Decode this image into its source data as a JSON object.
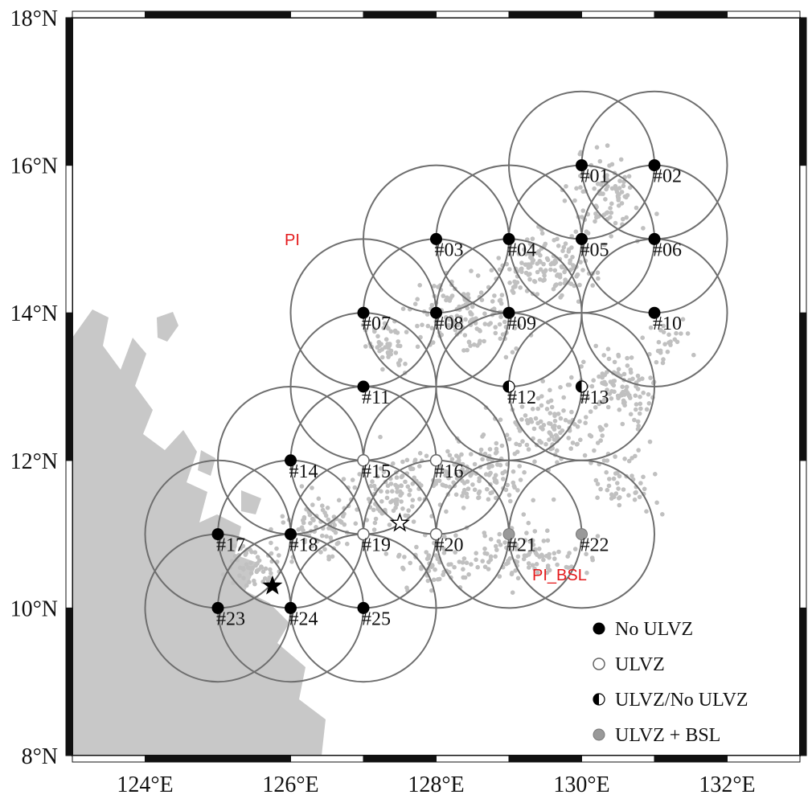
{
  "map": {
    "lon_range": [
      123,
      133
    ],
    "lat_range": [
      8,
      18
    ],
    "x_ticks": [
      {
        "value": 124,
        "label": "124°E"
      },
      {
        "value": 126,
        "label": "126°E"
      },
      {
        "value": 128,
        "label": "128°E"
      },
      {
        "value": 130,
        "label": "130°E"
      },
      {
        "value": 132,
        "label": "132°E"
      }
    ],
    "y_ticks": [
      {
        "value": 8,
        "label": "8°N"
      },
      {
        "value": 10,
        "label": "10°N"
      },
      {
        "value": 12,
        "label": "12°N"
      },
      {
        "value": 14,
        "label": "14°N"
      },
      {
        "value": 16,
        "label": "16°N"
      },
      {
        "value": 18,
        "label": "18°N"
      }
    ],
    "circle_radius_deg": 1,
    "colors": {
      "land": "#c8c8c8",
      "circle": "#6e6e6e",
      "points": "#c0c0c0",
      "ulvz_bsl": "#999999",
      "annotation": "#e41a1c",
      "frame": "#111111"
    }
  },
  "bins": [
    {
      "id": "#01",
      "lon": 130,
      "lat": 16,
      "type": "no_ulvz"
    },
    {
      "id": "#02",
      "lon": 131,
      "lat": 16,
      "type": "no_ulvz"
    },
    {
      "id": "#03",
      "lon": 128,
      "lat": 15,
      "type": "no_ulvz"
    },
    {
      "id": "#04",
      "lon": 129,
      "lat": 15,
      "type": "no_ulvz"
    },
    {
      "id": "#05",
      "lon": 130,
      "lat": 15,
      "type": "no_ulvz"
    },
    {
      "id": "#06",
      "lon": 131,
      "lat": 15,
      "type": "no_ulvz"
    },
    {
      "id": "#07",
      "lon": 127,
      "lat": 14,
      "type": "no_ulvz"
    },
    {
      "id": "#08",
      "lon": 128,
      "lat": 14,
      "type": "no_ulvz"
    },
    {
      "id": "#09",
      "lon": 129,
      "lat": 14,
      "type": "no_ulvz"
    },
    {
      "id": "#10",
      "lon": 131,
      "lat": 14,
      "type": "no_ulvz"
    },
    {
      "id": "#11",
      "lon": 127,
      "lat": 13,
      "type": "no_ulvz"
    },
    {
      "id": "#12",
      "lon": 129,
      "lat": 13,
      "type": "half"
    },
    {
      "id": "#13",
      "lon": 130,
      "lat": 13,
      "type": "half"
    },
    {
      "id": "#14",
      "lon": 126,
      "lat": 12,
      "type": "no_ulvz"
    },
    {
      "id": "#15",
      "lon": 127,
      "lat": 12,
      "type": "ulvz"
    },
    {
      "id": "#16",
      "lon": 128,
      "lat": 12,
      "type": "ulvz"
    },
    {
      "id": "#17",
      "lon": 125,
      "lat": 11,
      "type": "no_ulvz"
    },
    {
      "id": "#18",
      "lon": 126,
      "lat": 11,
      "type": "no_ulvz"
    },
    {
      "id": "#19",
      "lon": 127,
      "lat": 11,
      "type": "ulvz"
    },
    {
      "id": "#20",
      "lon": 128,
      "lat": 11,
      "type": "ulvz"
    },
    {
      "id": "#21",
      "lon": 129,
      "lat": 11,
      "type": "ulvz_bsl"
    },
    {
      "id": "#22",
      "lon": 130,
      "lat": 11,
      "type": "ulvz_bsl"
    },
    {
      "id": "#23",
      "lon": 125,
      "lat": 10,
      "type": "no_ulvz"
    },
    {
      "id": "#24",
      "lon": 126,
      "lat": 10,
      "type": "no_ulvz"
    },
    {
      "id": "#25",
      "lon": 127,
      "lat": 10,
      "type": "no_ulvz"
    }
  ],
  "stars": [
    {
      "lon": 127.5,
      "lat": 11.15,
      "filled": false
    },
    {
      "lon": 125.75,
      "lat": 10.3,
      "filled": true
    }
  ],
  "annotations": {
    "pi_label": "PI",
    "pi_bsl_label": "PI_BSL"
  },
  "legend": [
    {
      "type": "no_ulvz",
      "label": "No ULVZ"
    },
    {
      "type": "ulvz",
      "label": "ULVZ"
    },
    {
      "type": "half",
      "label": "ULVZ/No ULVZ"
    },
    {
      "type": "ulvz_bsl",
      "label": "ULVZ + BSL"
    }
  ]
}
